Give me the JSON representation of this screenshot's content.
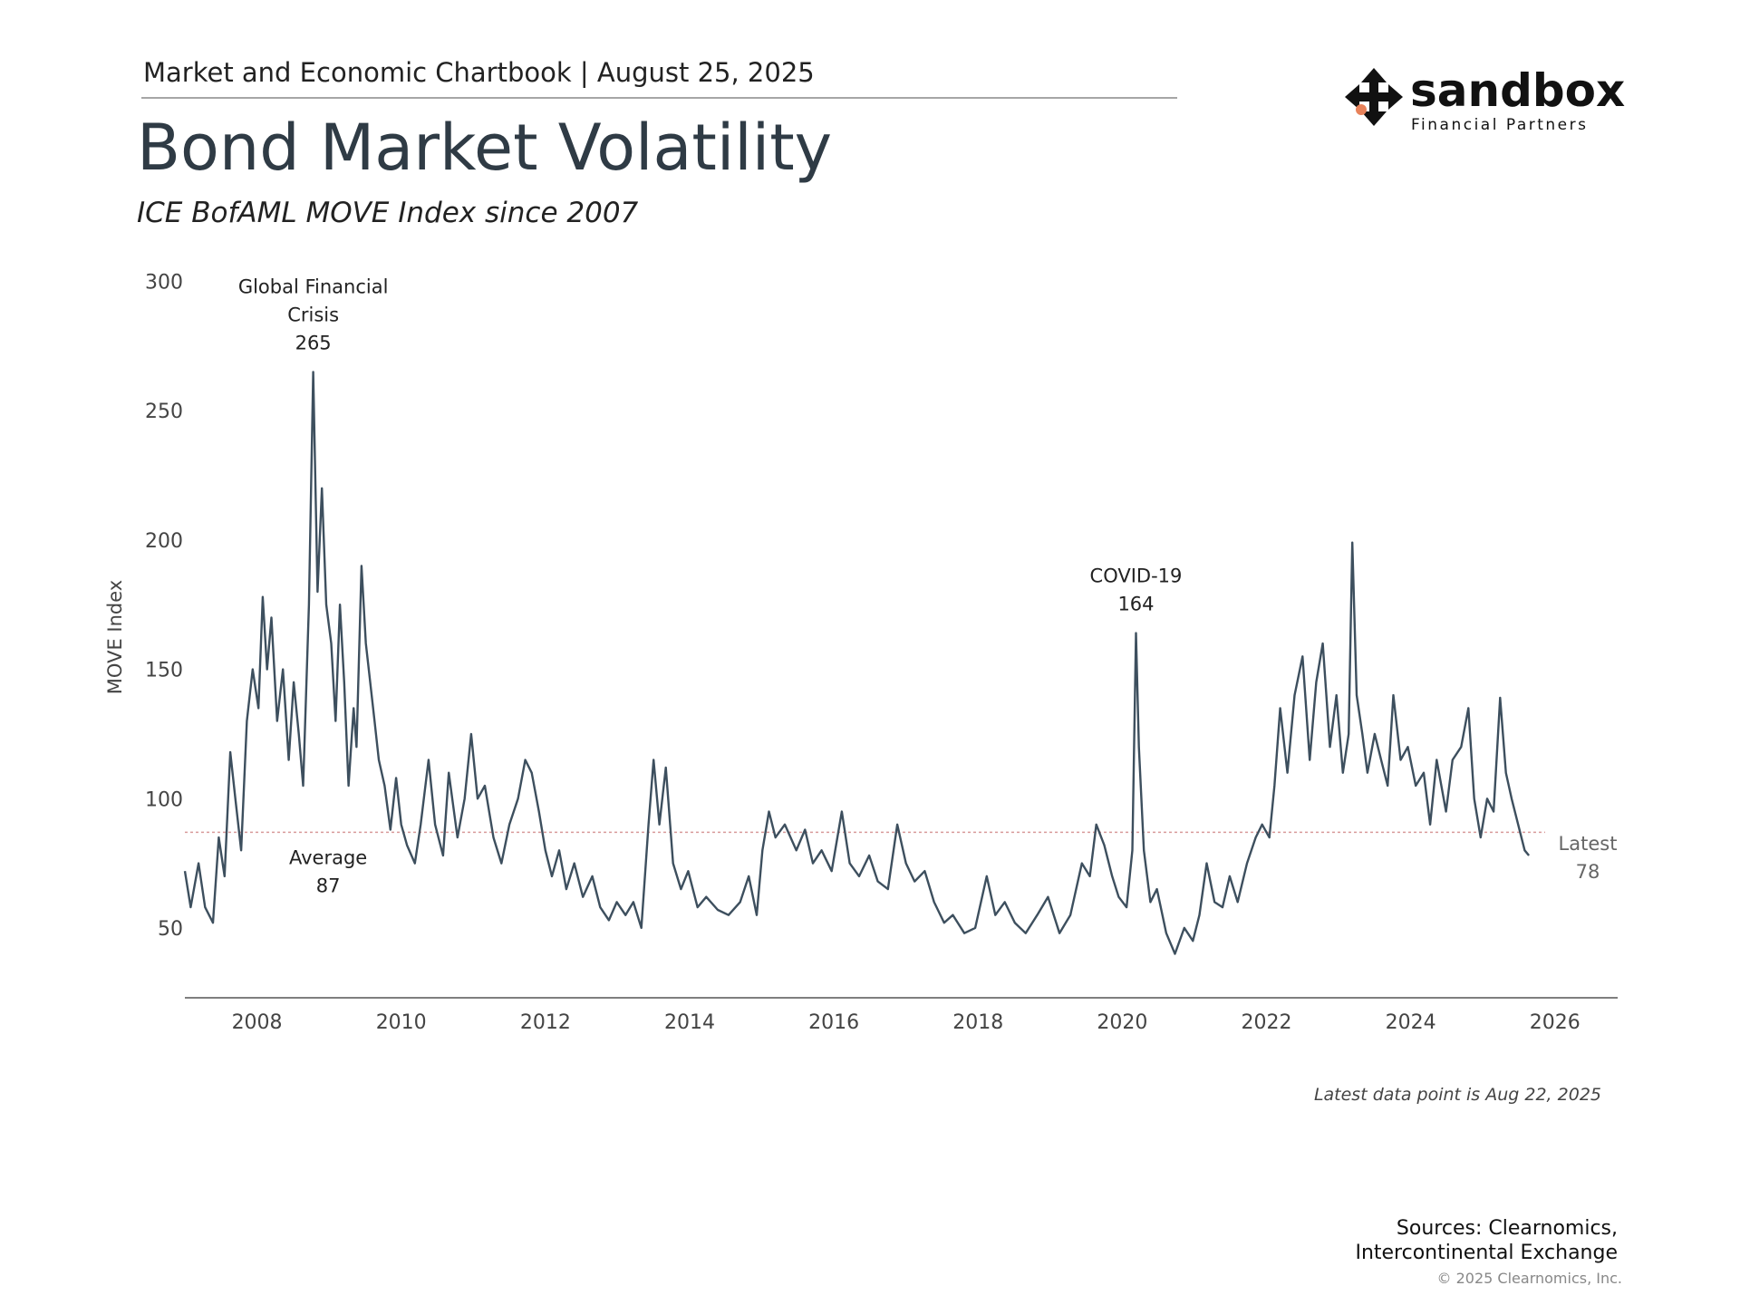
{
  "header": {
    "text": "Market and Economic Chartbook | August 25, 2025"
  },
  "logo": {
    "brand": "sandbox",
    "tagline": "Financial Partners"
  },
  "chart_data": {
    "type": "line",
    "title": "Bond Market Volatility",
    "subtitle": "ICE BofAML MOVE Index since 2007",
    "y_label": "MOVE Index",
    "color": "#3d4f5e",
    "xlim": [
      2007,
      2026.87
    ],
    "xticks": [
      2008,
      2010,
      2012,
      2014,
      2016,
      2018,
      2020,
      2022,
      2024,
      2026
    ],
    "ylim": [
      23,
      300
    ],
    "yticks": [
      50,
      100,
      150,
      200,
      250,
      300
    ],
    "x": [
      2007.0,
      2007.08,
      2007.19,
      2007.28,
      2007.39,
      2007.47,
      2007.55,
      2007.63,
      2007.7,
      2007.78,
      2007.86,
      2007.94,
      2008.02,
      2008.08,
      2008.14,
      2008.2,
      2008.28,
      2008.36,
      2008.44,
      2008.51,
      2008.58,
      2008.64,
      2008.72,
      2008.78,
      2008.84,
      2008.9,
      2008.96,
      2009.03,
      2009.09,
      2009.15,
      2009.21,
      2009.27,
      2009.34,
      2009.38,
      2009.45,
      2009.51,
      2009.57,
      2009.63,
      2009.69,
      2009.77,
      2009.85,
      2009.93,
      2010.0,
      2010.08,
      2010.19,
      2010.27,
      2010.38,
      2010.47,
      2010.58,
      2010.66,
      2010.78,
      2010.88,
      2010.97,
      2011.06,
      2011.16,
      2011.28,
      2011.39,
      2011.5,
      2011.62,
      2011.72,
      2011.81,
      2011.91,
      2012.0,
      2012.09,
      2012.19,
      2012.29,
      2012.4,
      2012.52,
      2012.65,
      2012.76,
      2012.88,
      2012.99,
      2013.11,
      2013.22,
      2013.33,
      2013.43,
      2013.5,
      2013.58,
      2013.67,
      2013.77,
      2013.88,
      2013.98,
      2014.11,
      2014.23,
      2014.39,
      2014.54,
      2014.7,
      2014.82,
      2014.93,
      2015.01,
      2015.1,
      2015.19,
      2015.32,
      2015.48,
      2015.6,
      2015.71,
      2015.83,
      2015.97,
      2016.11,
      2016.22,
      2016.35,
      2016.49,
      2016.61,
      2016.75,
      2016.88,
      2017.0,
      2017.12,
      2017.26,
      2017.39,
      2017.53,
      2017.65,
      2017.81,
      2017.96,
      2018.12,
      2018.24,
      2018.37,
      2018.51,
      2018.66,
      2018.82,
      2018.97,
      2019.13,
      2019.28,
      2019.44,
      2019.55,
      2019.64,
      2019.75,
      2019.86,
      2019.95,
      2020.06,
      2020.14,
      2020.19,
      2020.23,
      2020.3,
      2020.39,
      2020.48,
      2020.61,
      2020.73,
      2020.86,
      2020.98,
      2021.07,
      2021.17,
      2021.28,
      2021.39,
      2021.49,
      2021.6,
      2021.73,
      2021.85,
      2021.94,
      2022.04,
      2022.11,
      2022.19,
      2022.29,
      2022.39,
      2022.5,
      2022.6,
      2022.69,
      2022.78,
      2022.88,
      2022.97,
      2023.06,
      2023.14,
      2023.19,
      2023.25,
      2023.33,
      2023.4,
      2023.5,
      2023.59,
      2023.68,
      2023.76,
      2023.86,
      2023.96,
      2024.07,
      2024.18,
      2024.27,
      2024.36,
      2024.49,
      2024.58,
      2024.7,
      2024.8,
      2024.88,
      2024.97,
      2025.06,
      2025.15,
      2025.24,
      2025.32,
      2025.4,
      2025.49,
      2025.58,
      2025.64
    ],
    "values": [
      72,
      58,
      75,
      58,
      52,
      85,
      70,
      118,
      100,
      80,
      130,
      150,
      135,
      178,
      150,
      170,
      130,
      150,
      115,
      145,
      125,
      105,
      175,
      265,
      180,
      220,
      175,
      160,
      130,
      175,
      145,
      105,
      135,
      120,
      190,
      160,
      145,
      130,
      115,
      105,
      88,
      108,
      90,
      82,
      75,
      90,
      115,
      90,
      78,
      110,
      85,
      100,
      125,
      100,
      105,
      85,
      75,
      90,
      100,
      115,
      110,
      95,
      80,
      70,
      80,
      65,
      75,
      62,
      70,
      58,
      53,
      60,
      55,
      60,
      50,
      90,
      115,
      90,
      112,
      75,
      65,
      72,
      58,
      62,
      57,
      55,
      60,
      70,
      55,
      80,
      95,
      85,
      90,
      80,
      88,
      75,
      80,
      72,
      95,
      75,
      70,
      78,
      68,
      65,
      90,
      75,
      68,
      72,
      60,
      52,
      55,
      48,
      50,
      70,
      55,
      60,
      52,
      48,
      55,
      62,
      48,
      55,
      75,
      70,
      90,
      82,
      70,
      62,
      58,
      80,
      164,
      120,
      80,
      60,
      65,
      48,
      40,
      50,
      45,
      55,
      75,
      60,
      58,
      70,
      60,
      75,
      85,
      90,
      85,
      105,
      135,
      110,
      140,
      155,
      115,
      145,
      160,
      120,
      140,
      110,
      125,
      199,
      140,
      125,
      110,
      125,
      115,
      105,
      140,
      115,
      120,
      105,
      110,
      90,
      115,
      95,
      115,
      120,
      135,
      100,
      85,
      100,
      95,
      139,
      110,
      100,
      90,
      80,
      78
    ],
    "annotations": [
      {
        "text": [
          "Global Financial",
          "Crisis"
        ],
        "value": 265,
        "x": 2008.78
      },
      {
        "text": [
          "COVID-19"
        ],
        "value": 164,
        "x": 2020.19
      }
    ],
    "average": {
      "label": "Average",
      "value": 87
    },
    "latest": {
      "label": "Latest",
      "value": 78
    },
    "note": "Latest data point is Aug 22, 2025"
  },
  "footer": {
    "sources": [
      "Sources: Clearnomics,",
      "Intercontinental Exchange"
    ],
    "copyright": "© 2025 Clearnomics, Inc."
  }
}
